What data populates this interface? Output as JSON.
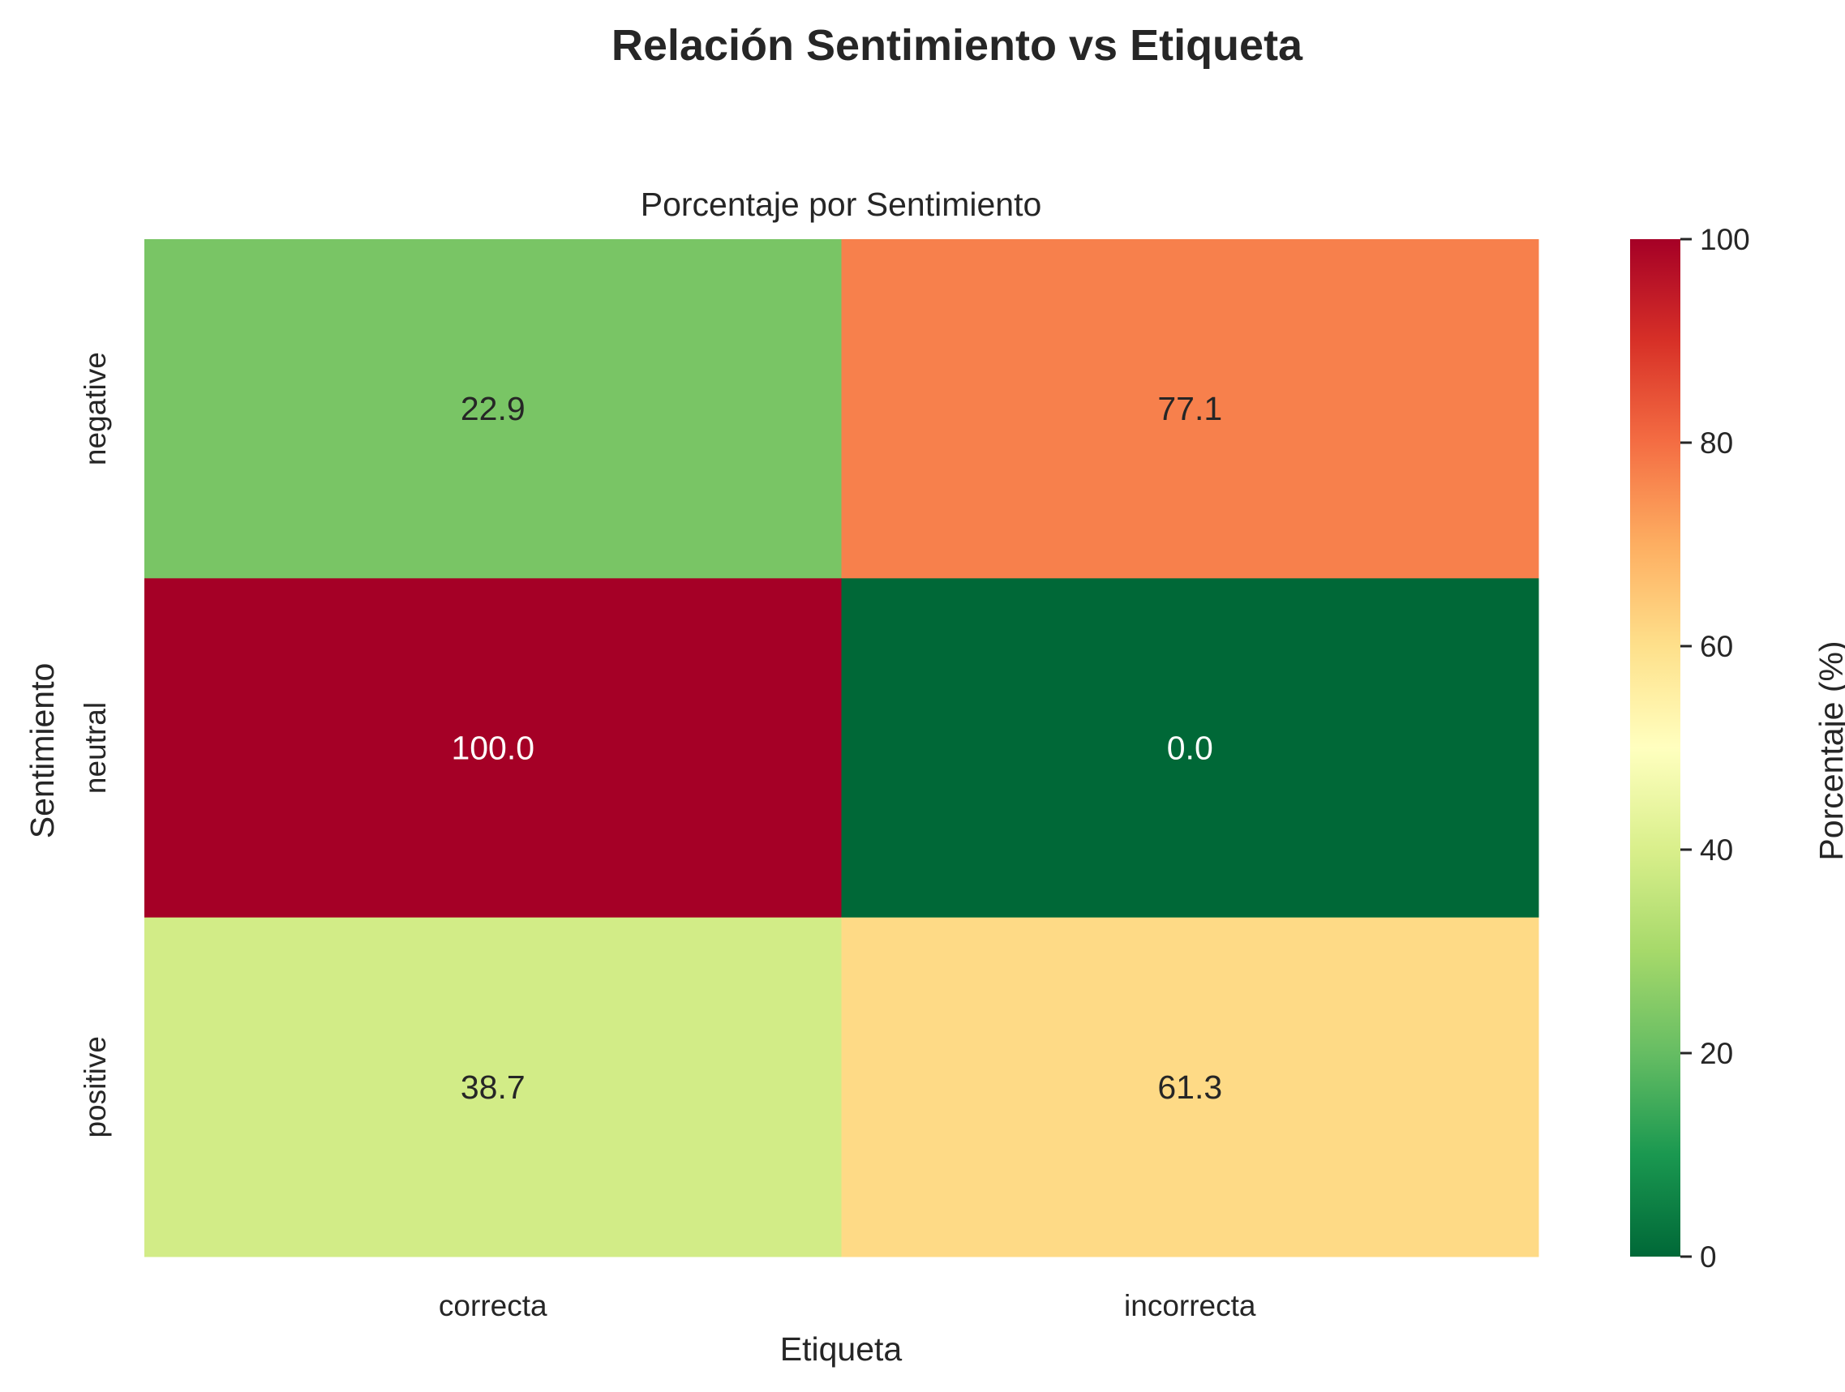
{
  "chart_data": {
    "type": "heatmap",
    "title": "Relación Sentimiento vs Etiqueta",
    "subtitle": "Porcentaje por Sentimiento",
    "xlabel": "Etiqueta",
    "ylabel": "Sentimiento",
    "x_categories": [
      "correcta",
      "incorrecta"
    ],
    "y_categories": [
      "negative",
      "neutral",
      "positive"
    ],
    "values": [
      [
        22.9,
        77.1
      ],
      [
        100.0,
        0.0
      ],
      [
        38.7,
        61.3
      ]
    ],
    "value_labels": [
      [
        "22.9",
        "77.1"
      ],
      [
        "100.0",
        "0.0"
      ],
      [
        "38.7",
        "61.3"
      ]
    ],
    "colormap": "RdYlGn_r",
    "vmin": 0,
    "vmax": 100,
    "colorbar": {
      "label": "Porcentaje (%)",
      "ticks": [
        "0",
        "20",
        "40",
        "60",
        "80",
        "100"
      ]
    }
  }
}
